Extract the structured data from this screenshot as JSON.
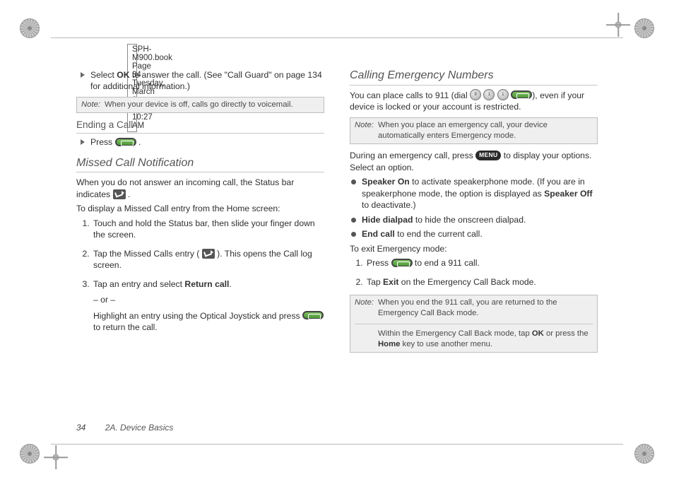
{
  "header": "SPH-M900.book  Page 34  Tuesday, March 2, 2010  10:27 AM",
  "left": {
    "bullet1": {
      "pre": "Select ",
      "bold": "OK",
      "post": " to answer the call. (See \"Call Guard\" on page 134 for additional information.)"
    },
    "note1_label": "Note:",
    "note1": "When your device is off, calls go directly to voicemail.",
    "ending_head": "Ending a Call",
    "ending_press": "Press ",
    "ending_period": ".",
    "missed_head": "Missed Call Notification",
    "missed_intro_pre": "When you do not answer an incoming call, the Status bar indicates ",
    "missed_intro_post": ".",
    "missed_sub": "To display a Missed Call entry from the Home screen:",
    "step1": "Touch and hold the Status bar, then slide your finger down the screen.",
    "step2_pre": "Tap the Missed Calls entry ( ",
    "step2_post": " ). This opens the Call log screen.",
    "step3_line1_pre": "Tap an entry and select ",
    "step3_line1_bold": "Return call",
    "step3_line1_post": ".",
    "step3_or": "– or –",
    "step3_line2_pre": "Highlight an entry using the Optical Joystick and press ",
    "step3_line2_post": " to return the call."
  },
  "right": {
    "head": "Calling Emergency Numbers",
    "intro_pre": "You can place calls to 911 (dial ",
    "intro_post": "), even if your device is locked or your account is restricted.",
    "note2_label": "Note:",
    "note2": "When you place an emergency call, your device automatically enters Emergency mode.",
    "during_pre": "During an emergency call, press ",
    "during_post": " to display your options. Select an option.",
    "opt1_bold": "Speaker On",
    "opt1_mid": " to activate speakerphone mode. (If you are in speakerphone mode, the option is displayed as ",
    "opt1_bold2": "Speaker Off",
    "opt1_end": " to deactivate.)",
    "opt2_bold": "Hide dialpad",
    "opt2_end": " to hide the onscreen dialpad.",
    "opt3_bold": "End call",
    "opt3_end": " to end the current call.",
    "exit_sub": "To exit Emergency mode:",
    "exit1_pre": "Press ",
    "exit1_post": " to end a 911 call.",
    "exit2_pre": "Tap ",
    "exit2_bold": "Exit",
    "exit2_post": " on the Emergency Call Back mode.",
    "note3_label": "Note:",
    "note3a": "When you end the 911 call, you are returned to the Emergency Call Back mode.",
    "note3b_pre": "Within the Emergency Call Back mode, tap ",
    "note3b_bold1": "OK",
    "note3b_mid": " or press the ",
    "note3b_bold2": "Home",
    "note3b_end": " key to use another menu."
  },
  "footer": {
    "page": "34",
    "section": "2A. Device Basics"
  },
  "menu_label": "MENU",
  "dial9": "9\nWXYZ",
  "dial1a": "1",
  "dial1b": "1"
}
